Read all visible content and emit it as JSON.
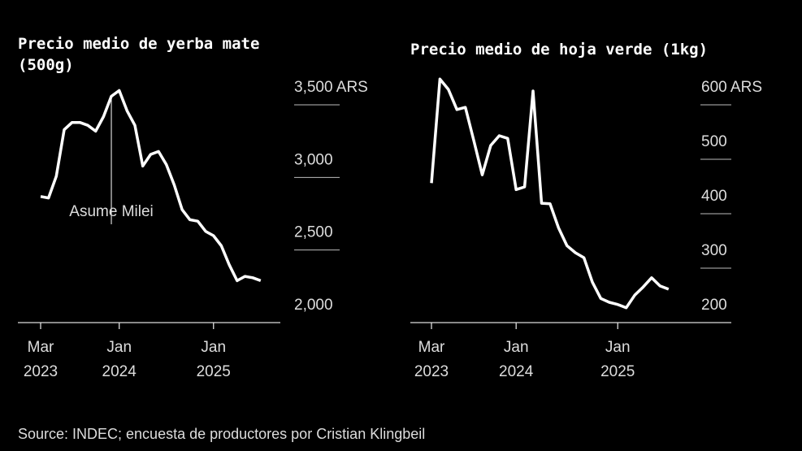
{
  "chart_data": [
    {
      "type": "line",
      "title": "Precio medio de yerba mate (500g)",
      "x_start": "2023-03",
      "x_end": "2025-07",
      "x_frequency": "monthly",
      "x_ticks": [
        {
          "month_index": 0,
          "label": [
            "Mar",
            "2023"
          ]
        },
        {
          "month_index": 10,
          "label": [
            "Jan",
            "2024"
          ]
        },
        {
          "month_index": 22,
          "label": [
            "Jan",
            "2025"
          ]
        }
      ],
      "y_ticks": [
        2000,
        2500,
        3000,
        3500
      ],
      "y_tick_labels": [
        "2,000",
        "2,500",
        "3,000",
        "3,500 ARS"
      ],
      "ylim": [
        2000,
        3500
      ],
      "values": [
        2740,
        2730,
        2880,
        3200,
        3250,
        3250,
        3230,
        3190,
        3290,
        3430,
        3470,
        3330,
        3230,
        2950,
        3030,
        3050,
        2960,
        2820,
        2650,
        2580,
        2570,
        2500,
        2470,
        2400,
        2270,
        2160,
        2190,
        2180,
        2160
      ],
      "annotation": {
        "label": "Asume Milei",
        "month_index": 9
      }
    },
    {
      "type": "line",
      "title": "Precio medio de hoja verde (1kg)",
      "x_start": "2023-03",
      "x_end": "2025-07",
      "x_frequency": "monthly",
      "x_ticks": [
        {
          "month_index": 0,
          "label": [
            "Mar",
            "2023"
          ]
        },
        {
          "month_index": 10,
          "label": [
            "Jan",
            "2024"
          ]
        },
        {
          "month_index": 22,
          "label": [
            "Jan",
            "2025"
          ]
        }
      ],
      "y_ticks": [
        200,
        300,
        400,
        500,
        600
      ],
      "y_tick_labels": [
        "200",
        "300",
        "400",
        "500",
        "600 ARS"
      ],
      "ylim": [
        200,
        600
      ],
      "values": [
        422,
        613,
        594,
        557,
        561,
        500,
        437,
        491,
        509,
        504,
        410,
        415,
        591,
        385,
        384,
        340,
        307,
        294,
        285,
        240,
        210,
        203,
        199,
        193,
        216,
        231,
        248,
        233,
        227
      ]
    }
  ],
  "source": "Source: INDEC; encuesta de productores por Cristian Klingbeil",
  "colors": {
    "background": "#000000",
    "line": "#ffffff",
    "text": "#dddddd"
  }
}
